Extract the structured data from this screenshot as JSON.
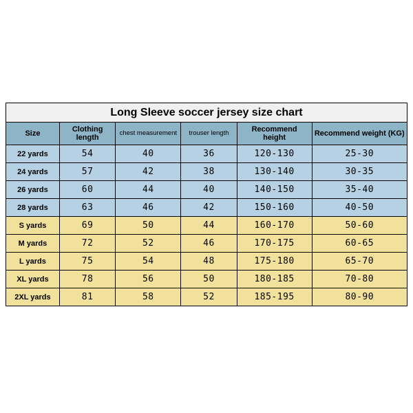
{
  "title": "Long Sleeve soccer jersey size chart",
  "columns": [
    {
      "key": "size",
      "label": "Size",
      "class": "col-size"
    },
    {
      "key": "cl",
      "label": "Clothing length",
      "class": "col-cl",
      "twoLine": true
    },
    {
      "key": "cm",
      "label": "chest measurement",
      "class": "col-cm",
      "small": true
    },
    {
      "key": "tl",
      "label": "trouser length",
      "class": "col-tl",
      "small": true
    },
    {
      "key": "rh",
      "label": "Recommend height",
      "class": "col-rh",
      "twoLine": true
    },
    {
      "key": "rw",
      "label": "Recommend weight (KG)",
      "class": "col-rw"
    }
  ],
  "rows": [
    {
      "group": "kid",
      "size": "22 yards",
      "cl": "54",
      "cm": "40",
      "tl": "36",
      "rh": "120-130",
      "rw": "25-30"
    },
    {
      "group": "kid",
      "size": "24 yards",
      "cl": "57",
      "cm": "42",
      "tl": "38",
      "rh": "130-140",
      "rw": "30-35"
    },
    {
      "group": "kid",
      "size": "26 yards",
      "cl": "60",
      "cm": "44",
      "tl": "40",
      "rh": "140-150",
      "rw": "35-40"
    },
    {
      "group": "kid",
      "size": "28 yards",
      "cl": "63",
      "cm": "46",
      "tl": "42",
      "rh": "150-160",
      "rw": "40-50"
    },
    {
      "group": "adult",
      "size": "S yards",
      "cl": "69",
      "cm": "50",
      "tl": "44",
      "rh": "160-170",
      "rw": "50-60"
    },
    {
      "group": "adult",
      "size": "M yards",
      "cl": "72",
      "cm": "52",
      "tl": "46",
      "rh": "170-175",
      "rw": "60-65"
    },
    {
      "group": "adult",
      "size": "L yards",
      "cl": "75",
      "cm": "54",
      "tl": "48",
      "rh": "175-180",
      "rw": "65-70"
    },
    {
      "group": "adult",
      "size": "XL yards",
      "cl": "78",
      "cm": "56",
      "tl": "50",
      "rh": "180-185",
      "rw": "70-80"
    },
    {
      "group": "adult",
      "size": "2XL yards",
      "cl": "81",
      "cm": "58",
      "tl": "52",
      "rh": "185-195",
      "rw": "80-90"
    }
  ],
  "colors": {
    "header_bg": "#8eb4c8",
    "kid_bg": "#b6d0e4",
    "adult_bg": "#f2e19b",
    "title_bg": "#f0f0f0",
    "border": "#000000"
  }
}
